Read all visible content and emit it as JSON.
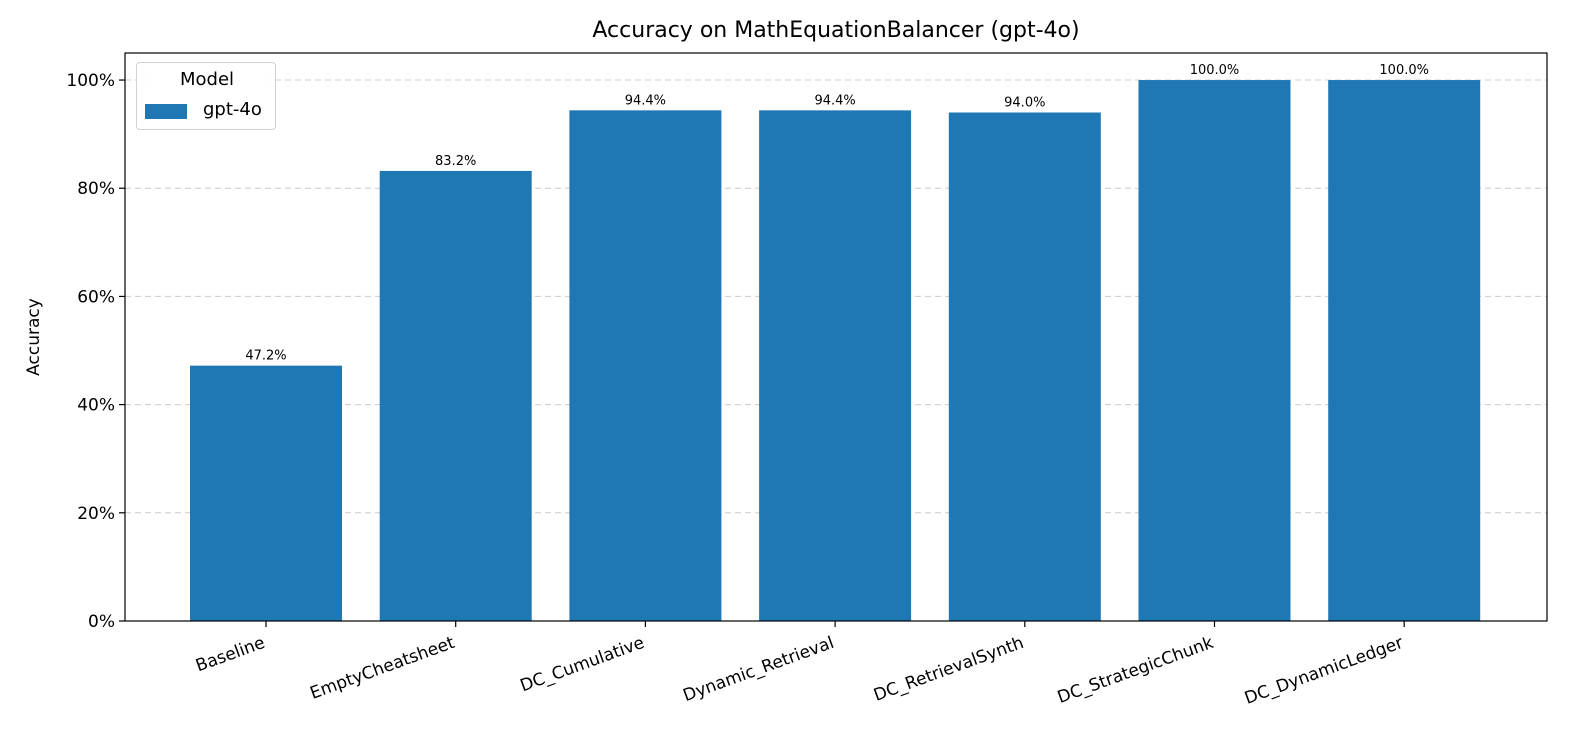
{
  "chart_data": {
    "type": "bar",
    "title": "Accuracy on MathEquationBalancer (gpt-4o)",
    "xlabel": "",
    "ylabel": "Accuracy",
    "categories": [
      "Baseline",
      "EmptyCheatsheet",
      "DC_Cumulative",
      "Dynamic_Retrieval",
      "DC_RetrievalSynth",
      "DC_StrategicChunk",
      "DC_DynamicLedger"
    ],
    "series": [
      {
        "name": "gpt-4o",
        "values": [
          47.2,
          83.2,
          94.4,
          94.4,
          94.0,
          100.0,
          100.0
        ],
        "color": "#1f77b4"
      }
    ],
    "value_labels": [
      "47.2%",
      "83.2%",
      "94.4%",
      "94.4%",
      "94.0%",
      "100.0%",
      "100.0%"
    ],
    "ylim": [
      0,
      105
    ],
    "yticks": [
      "0%",
      "20%",
      "40%",
      "60%",
      "80%",
      "100%"
    ],
    "grid": "y-dashed",
    "legend": {
      "title": "Model",
      "position": "upper left",
      "entries": [
        "gpt-4o"
      ]
    }
  }
}
